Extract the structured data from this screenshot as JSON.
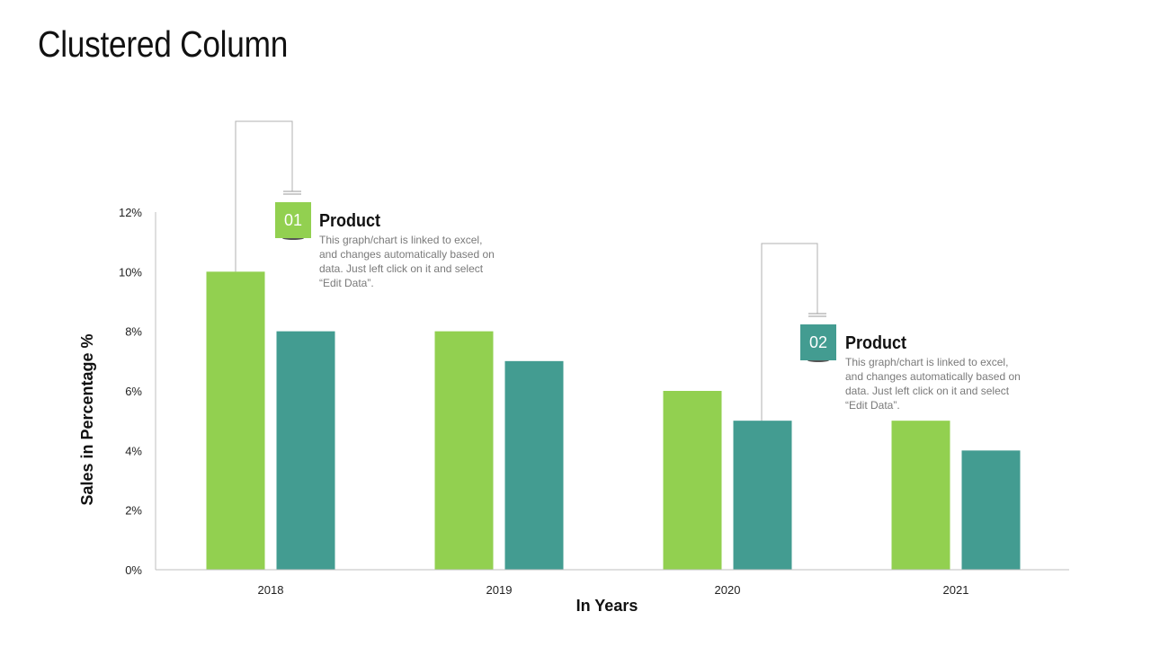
{
  "page": {
    "title": "Clustered Column"
  },
  "callouts": [
    {
      "number": "01",
      "title": "Product",
      "text": "This graph/chart is linked to excel, and changes automatically based on data. Just left click on it and select “Edit Data”.",
      "color": "#92D050"
    },
    {
      "number": "02",
      "title": "Product",
      "text": "This graph/chart is linked to excel, and changes automatically based on data. Just left click on it and select “Edit Data”.",
      "color": "#439C91"
    }
  ],
  "chart_data": {
    "type": "bar",
    "categories": [
      "2018",
      "2019",
      "2020",
      "2021"
    ],
    "series": [
      {
        "values": [
          10,
          8,
          6,
          5
        ],
        "color": "#92D050"
      },
      {
        "values": [
          8,
          7,
          5,
          4
        ],
        "color": "#439C91"
      }
    ],
    "ylim": [
      0,
      12
    ],
    "yticks": [
      "0%",
      "2%",
      "4%",
      "6%",
      "8%",
      "10%",
      "12%"
    ],
    "xlabel": "In Years",
    "ylabel": "Sales in Percentage %",
    "grid": false,
    "legend": "none"
  }
}
